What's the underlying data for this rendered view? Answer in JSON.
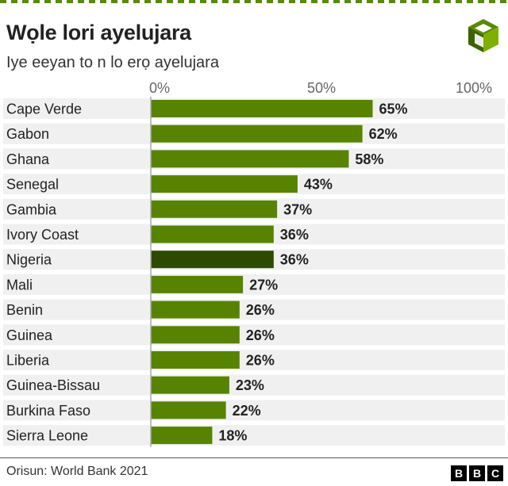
{
  "header": {
    "title": "Wọle lori ayelujara",
    "subtitle": "Iye eeyan to n lo erọ ayelujara"
  },
  "footer": {
    "source": "Orisun: World Bank 2021",
    "logo_letters": [
      "B",
      "B",
      "C"
    ]
  },
  "colors": {
    "bar": "#588300",
    "highlight": "#2e4a00",
    "row_band": "#f0f0f0",
    "axis": "#aaaaaa"
  },
  "chart_data": {
    "type": "bar",
    "orientation": "horizontal",
    "title": "Wọle lori ayelujara",
    "subtitle": "Iye eeyan to n lo erọ ayelujara",
    "xlim": [
      0,
      100
    ],
    "x_ticks": [
      "0%",
      "50%",
      "100%"
    ],
    "highlight_category": "Nigeria",
    "categories": [
      "Cape Verde",
      "Gabon",
      "Ghana",
      "Senegal",
      "Gambia",
      "Ivory Coast",
      "Nigeria",
      "Mali",
      "Benin",
      "Guinea",
      "Liberia",
      "Guinea-Bissau",
      "Burkina Faso",
      "Sierra Leone"
    ],
    "values": [
      65,
      62,
      58,
      43,
      37,
      36,
      36,
      27,
      26,
      26,
      26,
      23,
      22,
      18
    ],
    "value_labels": [
      "65%",
      "62%",
      "58%",
      "43%",
      "37%",
      "36%",
      "36%",
      "27%",
      "26%",
      "26%",
      "26%",
      "23%",
      "22%",
      "18%"
    ],
    "grid": false
  }
}
